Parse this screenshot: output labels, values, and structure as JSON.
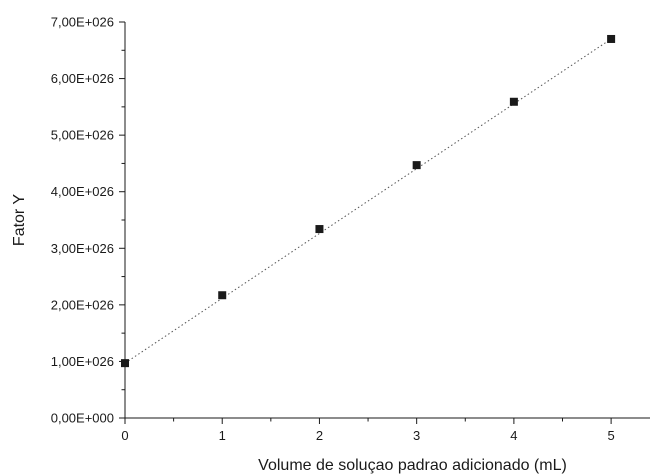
{
  "chart_data": {
    "type": "scatter",
    "title": "",
    "xlabel": "Volume de soluçao padrao adicionado (mL)",
    "ylabel": "Fator Y",
    "xlim": [
      0,
      5.4
    ],
    "ylim": [
      0,
      7e+26
    ],
    "x_ticks": [
      0,
      1,
      2,
      3,
      4,
      5
    ],
    "x_tick_labels": [
      "0",
      "1",
      "2",
      "3",
      "4",
      "5"
    ],
    "y_ticks": [
      0,
      1e+26,
      2e+26,
      3e+26,
      4e+26,
      5e+26,
      6e+26,
      7e+26
    ],
    "y_tick_labels": [
      "0,00E+000",
      "1,00E+026",
      "2,00E+026",
      "3,00E+026",
      "4,00E+026",
      "5,00E+026",
      "6,00E+026",
      "7,00E+026"
    ],
    "grid": false,
    "legend": "none",
    "series": [
      {
        "marker": "square",
        "color": "#1a1a1a",
        "x": [
          0,
          1,
          2,
          3,
          4,
          5
        ],
        "y": [
          9.7e+25,
          2.17e+26,
          3.34e+26,
          4.47e+26,
          5.59e+26,
          6.7e+26
        ]
      }
    ],
    "fit_line": {
      "style": "dotted",
      "color": "#555555",
      "x": [
        0,
        5
      ],
      "y": [
        9.7e+25,
        6.7e+26
      ]
    }
  }
}
